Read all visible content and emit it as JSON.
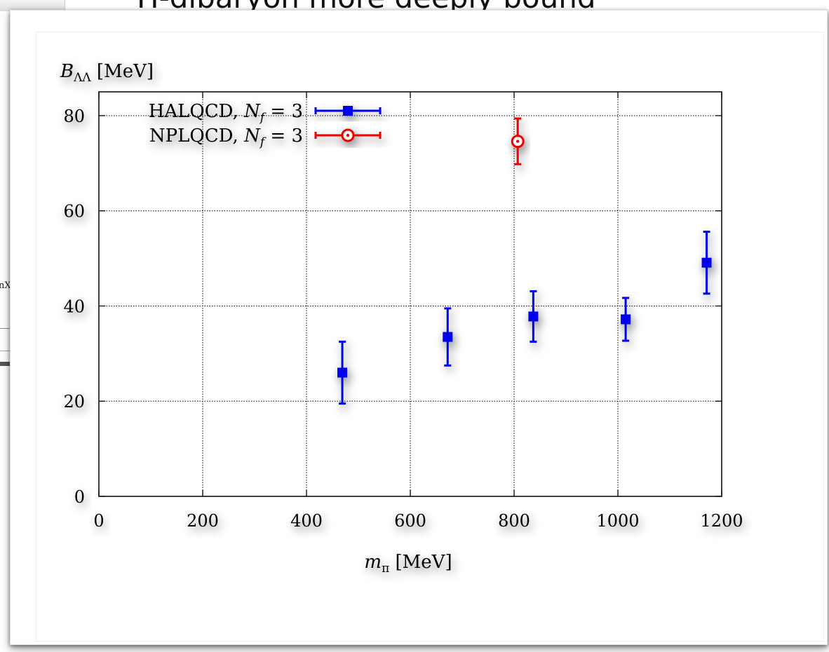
{
  "backdrop": {
    "title_fragment": "H-dibaryon more deeply bound",
    "side_text": "nX"
  },
  "colors": {
    "halqcd": "#0000ee",
    "nplqcd": "#ee0000",
    "axis": "#000000",
    "grid": "#000000"
  },
  "chart_data": {
    "type": "scatter",
    "title": "",
    "xlabel": "m_π [MeV]",
    "ylabel": "B_ΛΛ [MeV]",
    "xlim": [
      0,
      1200
    ],
    "ylim": [
      0,
      85
    ],
    "xticks": [
      0,
      200,
      400,
      600,
      800,
      1000,
      1200
    ],
    "yticks": [
      0,
      20,
      40,
      60,
      80
    ],
    "grid": true,
    "legend_position": "top-left",
    "series": [
      {
        "name": "HALQCD, N_f = 3",
        "marker": "filled-square",
        "color": "#0000ee",
        "points": [
          {
            "x": 469,
            "y": 26.0,
            "err": 6.5
          },
          {
            "x": 672,
            "y": 33.5,
            "err": 6.0
          },
          {
            "x": 837,
            "y": 37.8,
            "err": 5.3
          },
          {
            "x": 1015,
            "y": 37.2,
            "err": 4.5
          },
          {
            "x": 1171,
            "y": 49.1,
            "err": 6.5
          }
        ]
      },
      {
        "name": "NPLQCD, N_f = 3",
        "marker": "open-circle-dot",
        "color": "#ee0000",
        "points": [
          {
            "x": 807,
            "y": 74.6,
            "err": 4.8
          }
        ]
      }
    ]
  }
}
